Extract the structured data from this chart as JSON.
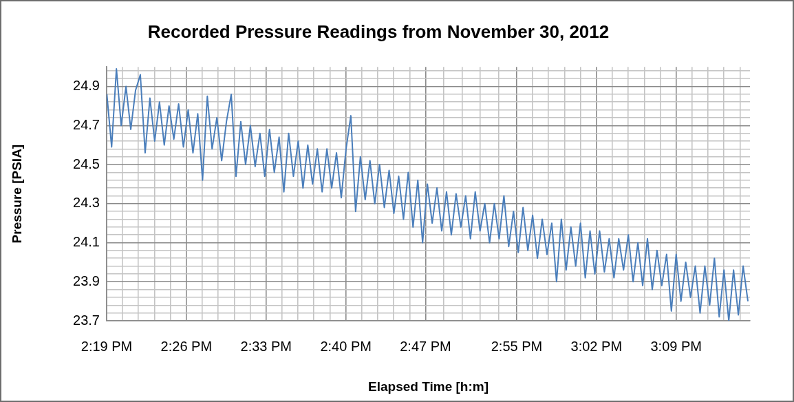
{
  "chart_data": {
    "type": "line",
    "title": "Recorded Pressure Readings from November 30, 2012",
    "xlabel": "Elapsed Time [h:m]",
    "ylabel": "Pressure [PSIA]",
    "x": [
      14.317,
      14.324,
      14.331,
      14.338,
      14.345,
      14.352,
      14.359,
      14.366,
      14.373,
      14.38,
      14.387,
      14.394,
      14.401,
      14.408,
      14.415,
      14.422,
      14.429,
      14.436,
      14.443,
      14.45,
      14.457,
      14.464,
      14.471,
      14.478,
      14.485,
      14.492,
      14.499,
      14.506,
      14.513,
      14.52,
      14.527,
      14.534,
      14.541,
      14.548,
      14.555,
      14.562,
      14.569,
      14.576,
      14.583,
      14.59,
      14.597,
      14.604,
      14.611,
      14.618,
      14.625,
      14.632,
      14.639,
      14.646,
      14.653,
      14.66,
      14.667,
      14.674,
      14.681,
      14.688,
      14.695,
      14.702,
      14.709,
      14.716,
      14.723,
      14.73,
      14.737,
      14.744,
      14.751,
      14.758,
      14.765,
      14.772,
      14.779,
      14.786,
      14.793,
      14.8,
      14.807,
      14.814,
      14.821,
      14.828,
      14.835,
      14.842,
      14.849,
      14.856,
      14.863,
      14.87,
      14.877,
      14.884,
      14.891,
      14.898,
      14.905,
      14.912,
      14.919,
      14.926,
      14.933,
      14.94,
      14.947,
      14.954,
      14.961,
      14.968,
      14.975,
      14.982,
      14.989,
      14.996,
      15.003,
      15.01,
      15.017,
      15.024,
      15.031,
      15.038,
      15.045,
      15.052,
      15.059,
      15.066,
      15.073,
      15.08,
      15.087,
      15.094,
      15.101,
      15.108,
      15.115,
      15.122,
      15.129,
      15.136,
      15.143,
      15.15,
      15.157,
      15.164,
      15.171,
      15.178,
      15.185,
      15.192,
      15.199,
      15.206,
      15.213,
      15.22,
      15.227,
      15.234,
      15.241,
      15.248,
      15.255
    ],
    "series": [
      {
        "color": "#4a7ebb",
        "values": [
          24.86,
          24.59,
          24.99,
          24.7,
          24.9,
          24.68,
          24.88,
          24.96,
          24.56,
          24.84,
          24.62,
          24.82,
          24.6,
          24.8,
          24.63,
          24.81,
          24.59,
          24.78,
          24.56,
          24.76,
          24.42,
          24.85,
          24.58,
          24.74,
          24.52,
          24.72,
          24.86,
          24.44,
          24.72,
          24.5,
          24.7,
          24.49,
          24.66,
          24.44,
          24.68,
          24.46,
          24.64,
          24.36,
          24.66,
          24.44,
          24.62,
          24.38,
          24.6,
          24.4,
          24.58,
          24.36,
          24.58,
          24.38,
          24.56,
          24.33,
          24.58,
          24.75,
          24.26,
          24.54,
          24.32,
          24.52,
          24.3,
          24.5,
          24.28,
          24.47,
          24.25,
          24.44,
          24.22,
          24.46,
          24.18,
          24.42,
          24.1,
          24.4,
          24.2,
          24.38,
          24.16,
          24.36,
          24.14,
          24.35,
          24.18,
          24.34,
          24.12,
          24.36,
          24.16,
          24.3,
          24.1,
          24.3,
          24.12,
          24.34,
          24.08,
          24.26,
          24.05,
          24.28,
          24.06,
          24.24,
          24.02,
          24.22,
          24.04,
          24.2,
          23.9,
          24.22,
          23.96,
          24.18,
          23.98,
          24.2,
          23.92,
          24.16,
          23.94,
          24.16,
          23.95,
          24.12,
          23.92,
          24.12,
          23.96,
          24.14,
          23.9,
          24.1,
          23.88,
          24.12,
          23.86,
          24.06,
          23.88,
          24.04,
          23.75,
          24.04,
          23.8,
          24,
          23.82,
          23.98,
          23.74,
          23.98,
          23.78,
          24.02,
          23.72,
          23.96,
          23.7,
          23.96,
          23.73,
          23.98,
          23.8
        ]
      }
    ],
    "xlim": [
      14.3167,
      15.258
    ],
    "xticks": [
      {
        "value": 14.3167,
        "label": "2:19 PM"
      },
      {
        "value": 14.34,
        "label": null
      },
      {
        "value": 14.3633,
        "label": null
      },
      {
        "value": 14.3867,
        "label": null
      },
      {
        "value": 14.41,
        "label": null
      },
      {
        "value": 14.4333,
        "label": "2:26 PM"
      },
      {
        "value": 14.4567,
        "label": null
      },
      {
        "value": 14.48,
        "label": null
      },
      {
        "value": 14.5033,
        "label": null
      },
      {
        "value": 14.5267,
        "label": null
      },
      {
        "value": 14.55,
        "label": "2:33 PM"
      },
      {
        "value": 14.5733,
        "label": null
      },
      {
        "value": 14.5967,
        "label": null
      },
      {
        "value": 14.62,
        "label": null
      },
      {
        "value": 14.6433,
        "label": null
      },
      {
        "value": 14.6667,
        "label": "2:40 PM"
      },
      {
        "value": 14.69,
        "label": null
      },
      {
        "value": 14.7133,
        "label": null
      },
      {
        "value": 14.7367,
        "label": null
      },
      {
        "value": 14.76,
        "label": null
      },
      {
        "value": 14.7833,
        "label": "2:47 PM"
      },
      {
        "value": 14.81,
        "label": null
      },
      {
        "value": 14.8367,
        "label": null
      },
      {
        "value": 14.8633,
        "label": null
      },
      {
        "value": 14.89,
        "label": null
      },
      {
        "value": 14.9167,
        "label": "2:55 PM"
      },
      {
        "value": 14.94,
        "label": null
      },
      {
        "value": 14.9633,
        "label": null
      },
      {
        "value": 14.9867,
        "label": null
      },
      {
        "value": 15.01,
        "label": null
      },
      {
        "value": 15.0333,
        "label": "3:02 PM"
      },
      {
        "value": 15.0567,
        "label": null
      },
      {
        "value": 15.08,
        "label": null
      },
      {
        "value": 15.1033,
        "label": null
      },
      {
        "value": 15.1267,
        "label": null
      },
      {
        "value": 15.15,
        "label": "3:09 PM"
      },
      {
        "value": 15.1733,
        "label": null
      },
      {
        "value": 15.1967,
        "label": null
      },
      {
        "value": 15.22,
        "label": null
      },
      {
        "value": 15.2433,
        "label": null
      }
    ],
    "ylim": [
      23.7,
      25.0
    ],
    "yticks": [
      23.7,
      {
        "value": 23.74,
        "label": null
      },
      {
        "value": 23.78,
        "label": null
      },
      {
        "value": 23.82,
        "label": null
      },
      {
        "value": 23.86,
        "label": null
      },
      23.9,
      {
        "value": 23.94,
        "label": null
      },
      {
        "value": 23.98,
        "label": null
      },
      {
        "value": 24.02,
        "label": null
      },
      {
        "value": 24.06,
        "label": null
      },
      24.1,
      {
        "value": 24.14,
        "label": null
      },
      {
        "value": 24.18,
        "label": null
      },
      {
        "value": 24.22,
        "label": null
      },
      {
        "value": 24.26,
        "label": null
      },
      24.3,
      {
        "value": 24.34,
        "label": null
      },
      {
        "value": 24.38,
        "label": null
      },
      {
        "value": 24.42,
        "label": null
      },
      {
        "value": 24.46,
        "label": null
      },
      24.5,
      {
        "value": 24.54,
        "label": null
      },
      {
        "value": 24.58,
        "label": null
      },
      {
        "value": 24.62,
        "label": null
      },
      {
        "value": 24.66,
        "label": null
      },
      24.7,
      {
        "value": 24.74,
        "label": null
      },
      {
        "value": 24.78,
        "label": null
      },
      {
        "value": 24.82,
        "label": null
      },
      {
        "value": 24.86,
        "label": null
      },
      24.9,
      {
        "value": 24.94,
        "label": null
      },
      {
        "value": 24.98,
        "label": null
      }
    ],
    "grid": true,
    "legend": false,
    "marker": "none",
    "line_style": "solid"
  }
}
